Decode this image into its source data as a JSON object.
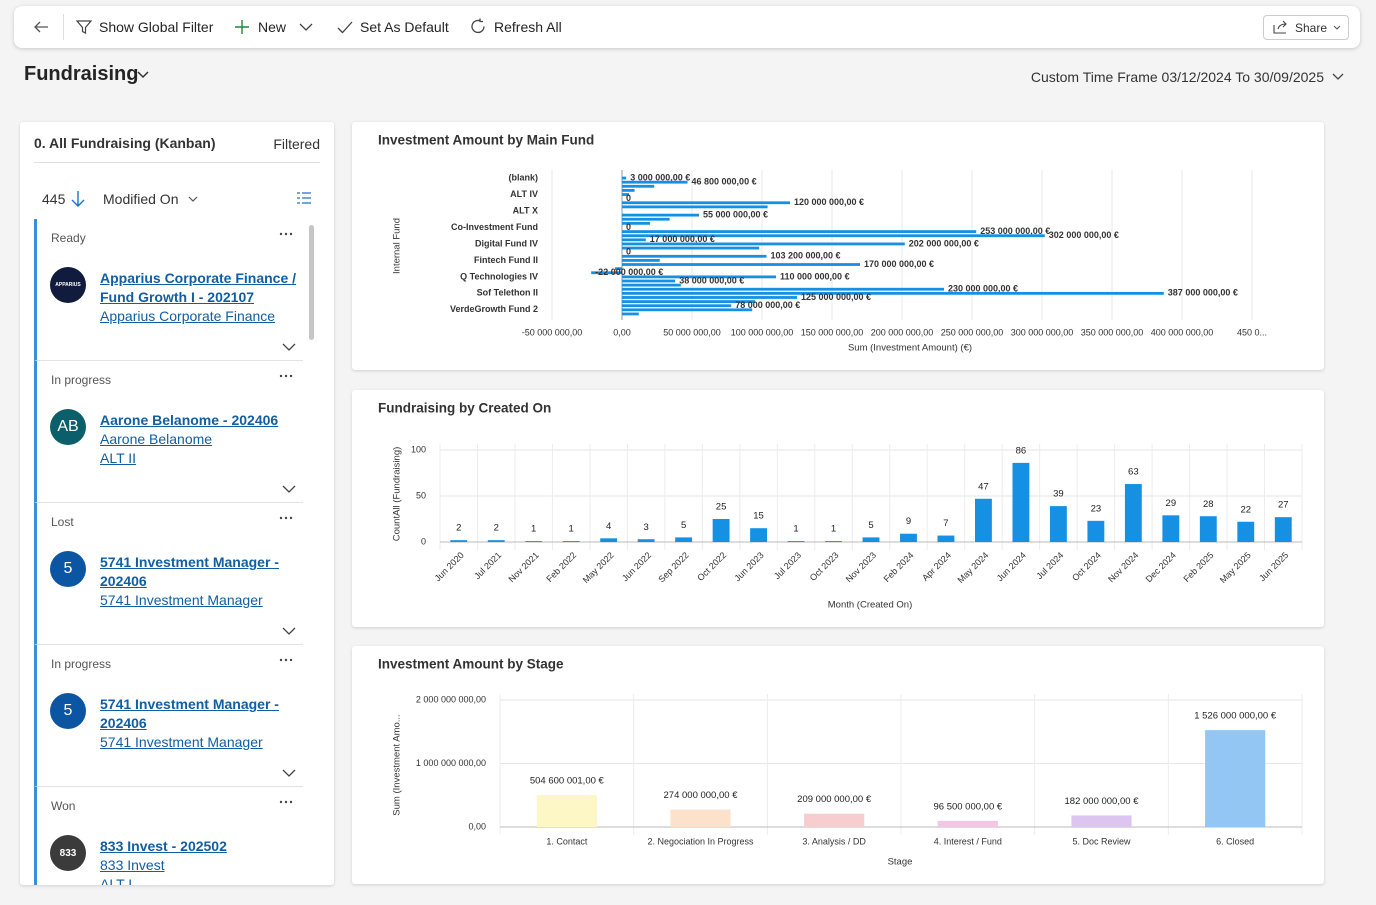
{
  "toolbar": {
    "items": [
      "Show Global Filter",
      "New",
      "Set As Default",
      "Refresh All"
    ],
    "share": "Share"
  },
  "header": {
    "title": "Fundraising",
    "time_frame": "Custom Time Frame 03/12/2024 To 30/09/2025"
  },
  "view": {
    "title": "0. All Fundraising (Kanban)",
    "filter": "Filtered",
    "count": 445,
    "sort": "Modified On",
    "cards": [
      {
        "status": "Ready",
        "avatar": "APPARIUS",
        "color": "#101b3d",
        "title": "Apparius Corporate Finance / Fund Growth I - 202107",
        "links": [
          "Apparius Corporate Finance"
        ]
      },
      {
        "status": "In progress",
        "avatar": "AB",
        "color": "#0b5f6b",
        "title": "Aarone Belanome - 202406",
        "links": [
          "Aarone Belanome",
          "ALT II"
        ]
      },
      {
        "status": "Lost",
        "avatar": "5",
        "color": "#0b55a3",
        "title": "5741 Investment Manager - 202406",
        "links": [
          "5741 Investment Manager"
        ]
      },
      {
        "status": "In progress",
        "avatar": "5",
        "color": "#0b55a3",
        "title": "5741 Investment Manager - 202406",
        "links": [
          "5741 Investment Manager"
        ]
      },
      {
        "status": "Won",
        "avatar": "833",
        "color": "#3b3b3b",
        "title": "833 Invest - 202502",
        "links": [
          "833 Invest",
          "ALT I"
        ]
      }
    ]
  },
  "chart_data": [
    {
      "type": "hbar",
      "title": "Investment Amount by Main Fund",
      "x_label": "Sum (Investment Amount) (€)",
      "y_label": "Internal Fund",
      "categories": [
        "(blank)",
        null,
        null,
        null,
        "ALT IV",
        null,
        null,
        null,
        "ALT X",
        null,
        null,
        null,
        "Co-Investment Fund",
        null,
        null,
        null,
        "Digital Fund IV",
        null,
        null,
        null,
        "Fintech Fund II",
        null,
        null,
        null,
        "Q Technologies IV",
        null,
        null,
        null,
        "Sof Telethon II",
        null,
        null,
        null,
        "VerdeGrowth Fund 2",
        null
      ],
      "values": [
        3000000,
        46800000,
        23000000,
        9000000,
        5000000,
        0,
        120000000,
        104000000,
        0,
        55000000,
        34000000,
        20000000,
        0,
        253000000,
        302000000,
        17000000,
        202000000,
        98000000,
        0,
        103200000,
        27000000,
        170000000,
        -5000000,
        -22000000,
        110000000,
        38000000,
        42000000,
        230000000,
        387000000,
        125000000,
        95000000,
        78000000,
        93000000,
        12000000
      ],
      "value_labels": [
        "3 000 000,00 €",
        "46 800 000,00 €",
        null,
        null,
        null,
        "0",
        "120 000 000,00 €",
        null,
        null,
        "55 000 000,00 €",
        null,
        null,
        "0",
        "253 000 000,00 €",
        "302 000 000,00 €",
        "17 000 000,00 €",
        "202 000 000,00 €",
        null,
        "0",
        "103 200 000,00 €",
        null,
        "170 000 000,00 €",
        null,
        "-22 000 000,00 €",
        "110 000 000,00 €",
        "38 000 000,00 €",
        null,
        "230 000 000,00 €",
        "387 000 000,00 €",
        "125 000 000,00 €",
        null,
        "78 000 000,00 €",
        null,
        null
      ],
      "color": "#1590e3",
      "xlim": [
        -50000000,
        450000000
      ],
      "xticks": [
        {
          "value": -50000000,
          "label": "-50 000 000,00"
        },
        {
          "value": 0,
          "label": "0,00"
        },
        {
          "value": 50000000,
          "label": "50 000 000,00"
        },
        {
          "value": 100000000,
          "label": "100 000 000,00"
        },
        {
          "value": 150000000,
          "label": "150 000 000,00"
        },
        {
          "value": 200000000,
          "label": "200 000 000,00"
        },
        {
          "value": 250000000,
          "label": "250 000 000,00"
        },
        {
          "value": 300000000,
          "label": "300 000 000,00"
        },
        {
          "value": 350000000,
          "label": "350 000 000,00"
        },
        {
          "value": 400000000,
          "label": "400 000 000,00"
        },
        {
          "value": 450000000,
          "label": "450 0..."
        }
      ],
      "grid": true
    },
    {
      "type": "bar",
      "title": "Fundraising by Created On",
      "x_label": "Month (Created On)",
      "y_label": "CountAll (Fundraising)",
      "categories": [
        "Jun 2020",
        "Jul 2021",
        "Nov 2021",
        "Feb 2022",
        "May 2022",
        "Jun 2022",
        "Sep 2022",
        "Oct 2022",
        "Jun 2023",
        "Jul 2023",
        "Oct 2023",
        "Nov 2023",
        "Feb 2024",
        "Apr 2024",
        "May 2024",
        "Jun 2024",
        "Jul 2024",
        "Oct 2024",
        "Nov 2024",
        "Dec 2024",
        "Feb 2025",
        "May 2025",
        "Jun 2025"
      ],
      "values": [
        2,
        2,
        1,
        1,
        4,
        3,
        5,
        25,
        15,
        1,
        1,
        5,
        9,
        7,
        47,
        86,
        39,
        23,
        63,
        29,
        28,
        22,
        27
      ],
      "color": "#1590e3",
      "ylim": [
        0,
        100
      ],
      "yticks": [
        0,
        50,
        100
      ],
      "grid": true
    },
    {
      "type": "bar",
      "title": "Investment Amount by Stage",
      "x_label": "Stage",
      "y_label": "Sum (Investment Amo...",
      "categories": [
        "1. Contact",
        "2. Negociation In Progress",
        "3. Analysis / DD",
        "4. Interest / Fund",
        "5. Doc Review",
        "6. Closed"
      ],
      "values": [
        504600001,
        274000000,
        209000000,
        96500000,
        182000000,
        1526000000
      ],
      "value_labels": [
        "504 600 001,00 €",
        "274 000 000,00 €",
        "209 000 000,00 €",
        "96 500 000,00 €",
        "182 000 000,00 €",
        "1 526 000 000,00 €"
      ],
      "colors": [
        "#fdf7c6",
        "#fde2cb",
        "#f8cdd0",
        "#f2c6e4",
        "#dcc6f1",
        "#93c6f2"
      ],
      "ylim": [
        0,
        2000000000
      ],
      "yticks": [
        {
          "value": 0,
          "label": "0,00"
        },
        {
          "value": 1000000000,
          "label": "1 000 000 000,00"
        },
        {
          "value": 2000000000,
          "label": "2 000 000 000,00"
        }
      ],
      "grid": true
    }
  ]
}
